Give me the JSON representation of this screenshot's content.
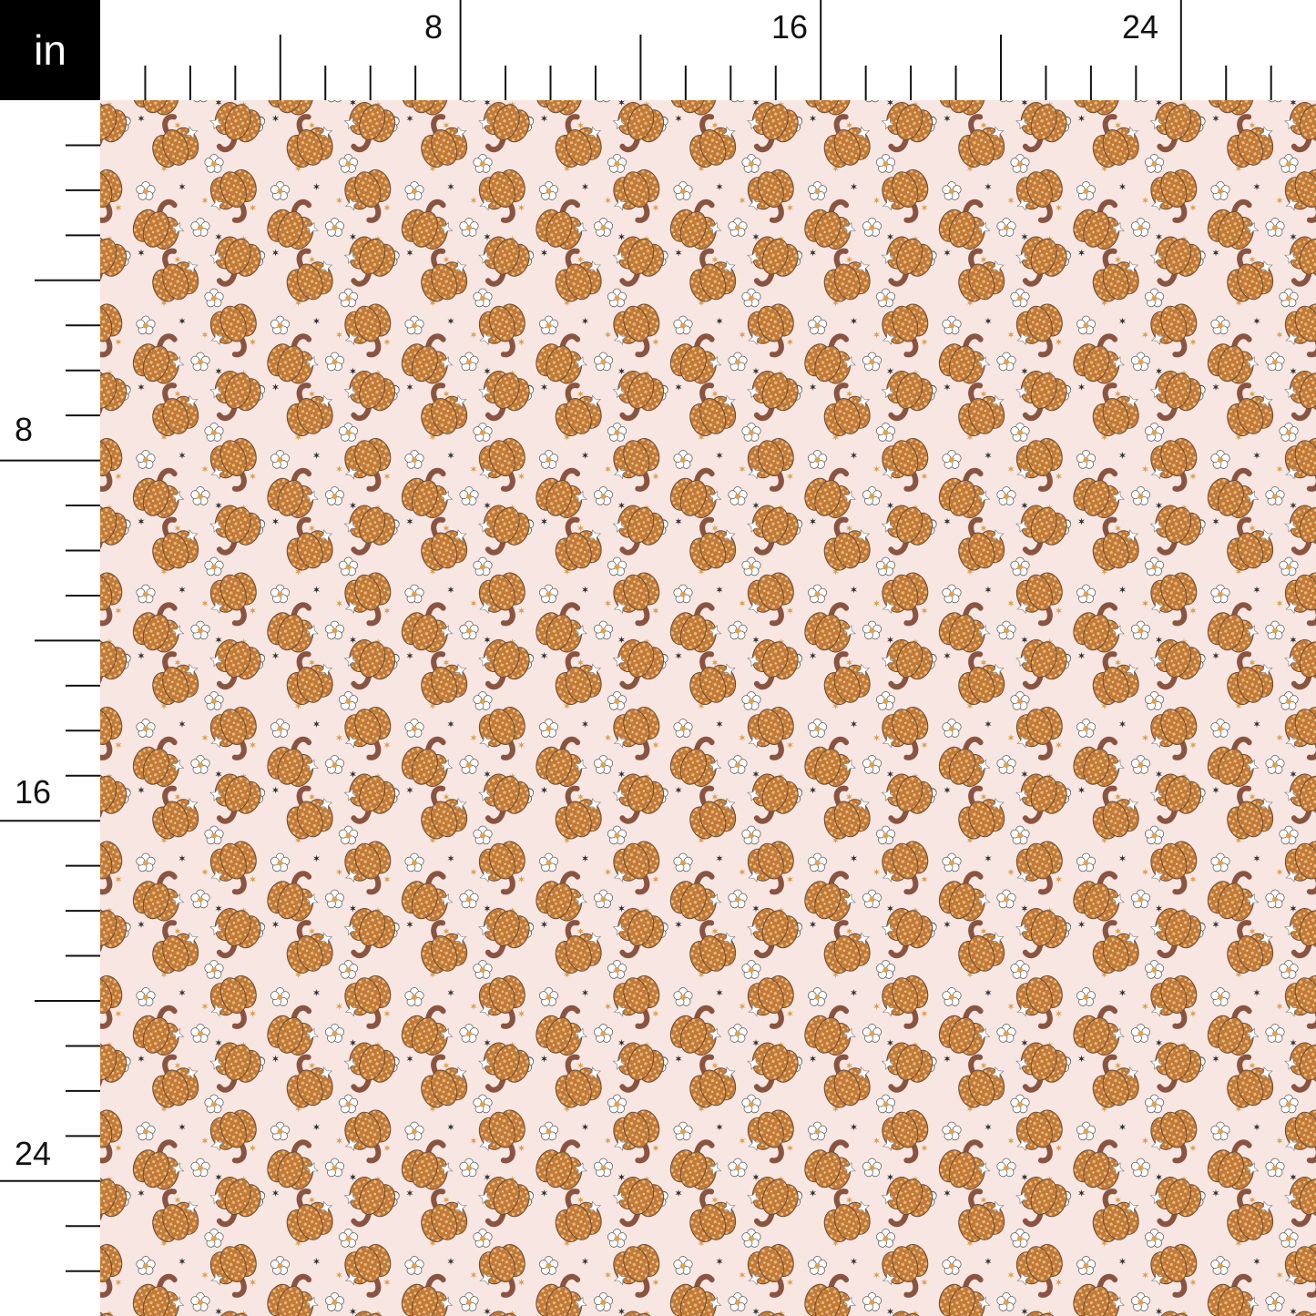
{
  "unit_label": "in",
  "top_ruler": {
    "labels": [
      "8",
      "16",
      "24"
    ]
  },
  "left_ruler": {
    "labels": [
      "8",
      "16",
      "24"
    ]
  },
  "pattern": {
    "motifs": [
      "disco-ball-pumpkin",
      "daisy-flower",
      "star"
    ],
    "colors": {
      "background": "#f8e6e2",
      "pumpkin": "#c27a38",
      "pumpkin_light": "#e9b777",
      "stem": "#8a5440",
      "flower": "#ffffff",
      "flower_center": "#e0a050",
      "star_dark": "#333333",
      "star_gold": "#d9a050"
    }
  }
}
